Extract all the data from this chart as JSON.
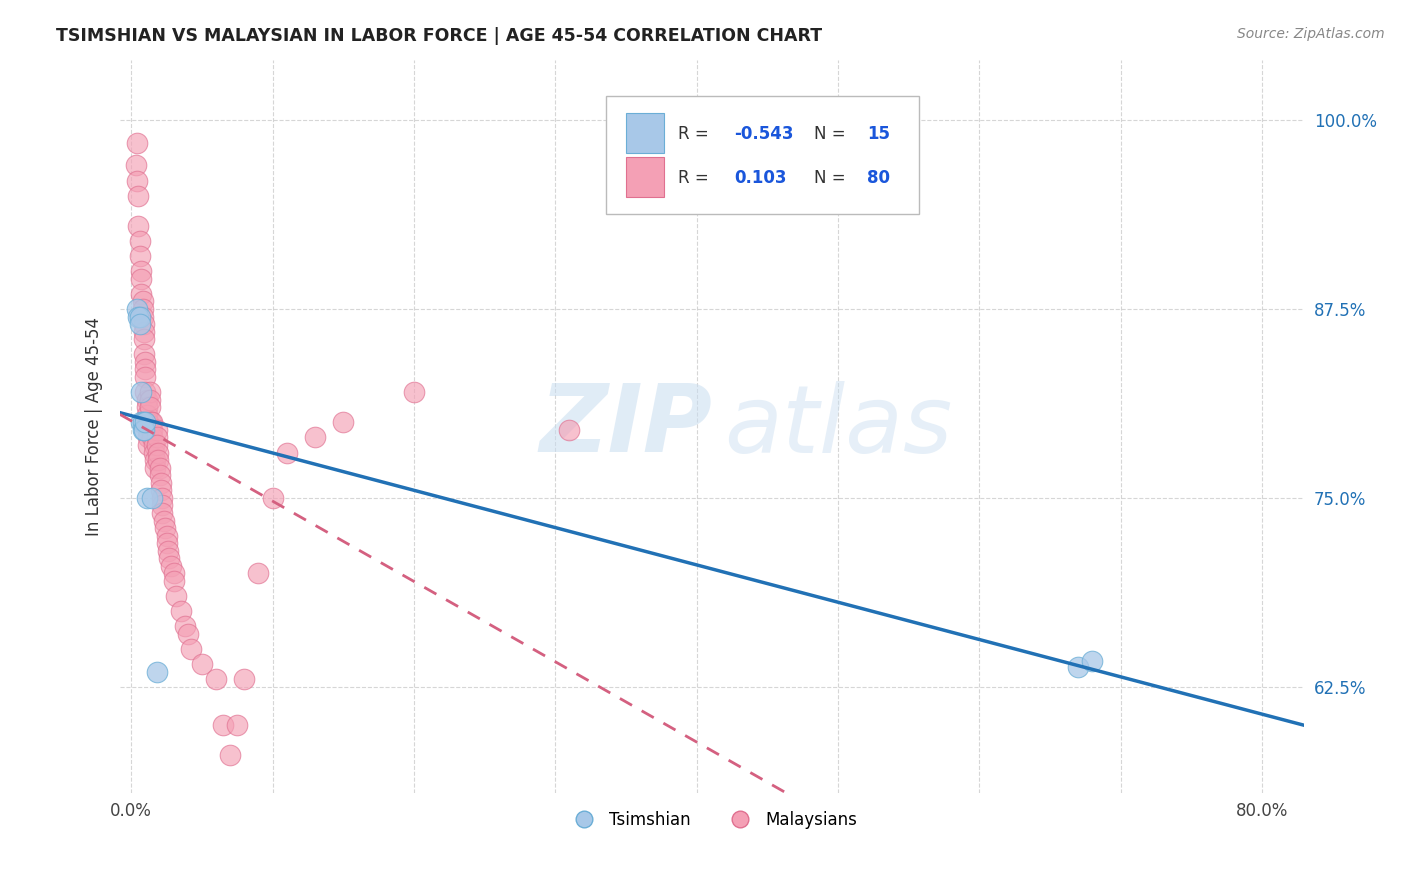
{
  "title": "TSIMSHIAN VS MALAYSIAN IN LABOR FORCE | AGE 45-54 CORRELATION CHART",
  "source": "Source: ZipAtlas.com",
  "ylabel": "In Labor Force | Age 45-54",
  "xlim_min": -0.008,
  "xlim_max": 0.83,
  "ylim_min": 0.555,
  "ylim_max": 1.04,
  "xticks": [
    0.0,
    0.1,
    0.2,
    0.3,
    0.4,
    0.5,
    0.6,
    0.7,
    0.8
  ],
  "xticklabels": [
    "0.0%",
    "",
    "",
    "",
    "",
    "",
    "",
    "",
    "80.0%"
  ],
  "yticks": [
    0.625,
    0.75,
    0.875,
    1.0
  ],
  "yticklabels": [
    "62.5%",
    "75.0%",
    "87.5%",
    "100.0%"
  ],
  "tsimshian_color": "#a8c8e8",
  "tsimshian_edge": "#6baed6",
  "malaysian_color": "#f4a0b5",
  "malaysian_edge": "#e07090",
  "tsimshian_line_color": "#2171b5",
  "malaysian_line_color": "#d46080",
  "tsimshian_R": -0.543,
  "tsimshian_N": 15,
  "malaysian_R": 0.103,
  "malaysian_N": 80,
  "legend_color": "#1a56db",
  "watermark_color": "#c8ddf0",
  "tsimshian_x": [
    0.004,
    0.005,
    0.006,
    0.006,
    0.007,
    0.007,
    0.008,
    0.008,
    0.009,
    0.01,
    0.011,
    0.015,
    0.018,
    0.67,
    0.68
  ],
  "tsimshian_y": [
    0.875,
    0.87,
    0.87,
    0.865,
    0.82,
    0.8,
    0.8,
    0.795,
    0.795,
    0.8,
    0.75,
    0.75,
    0.635,
    0.638,
    0.642
  ],
  "malaysian_x": [
    0.003,
    0.004,
    0.004,
    0.005,
    0.005,
    0.006,
    0.006,
    0.007,
    0.007,
    0.007,
    0.008,
    0.008,
    0.008,
    0.009,
    0.009,
    0.009,
    0.009,
    0.01,
    0.01,
    0.01,
    0.01,
    0.011,
    0.011,
    0.011,
    0.011,
    0.012,
    0.012,
    0.012,
    0.012,
    0.013,
    0.013,
    0.013,
    0.014,
    0.014,
    0.015,
    0.015,
    0.015,
    0.016,
    0.016,
    0.017,
    0.017,
    0.018,
    0.018,
    0.018,
    0.019,
    0.019,
    0.02,
    0.02,
    0.021,
    0.021,
    0.022,
    0.022,
    0.022,
    0.023,
    0.024,
    0.025,
    0.025,
    0.026,
    0.027,
    0.028,
    0.03,
    0.03,
    0.032,
    0.035,
    0.038,
    0.04,
    0.042,
    0.05,
    0.06,
    0.065,
    0.07,
    0.075,
    0.08,
    0.09,
    0.1,
    0.11,
    0.13,
    0.15,
    0.2,
    0.31
  ],
  "malaysian_y": [
    0.97,
    0.985,
    0.96,
    0.95,
    0.93,
    0.92,
    0.91,
    0.9,
    0.895,
    0.885,
    0.88,
    0.875,
    0.87,
    0.865,
    0.86,
    0.855,
    0.845,
    0.84,
    0.835,
    0.83,
    0.82,
    0.815,
    0.81,
    0.805,
    0.8,
    0.8,
    0.795,
    0.79,
    0.785,
    0.82,
    0.815,
    0.81,
    0.8,
    0.795,
    0.8,
    0.795,
    0.79,
    0.785,
    0.78,
    0.775,
    0.77,
    0.795,
    0.79,
    0.785,
    0.78,
    0.775,
    0.77,
    0.765,
    0.76,
    0.755,
    0.75,
    0.745,
    0.74,
    0.735,
    0.73,
    0.725,
    0.72,
    0.715,
    0.71,
    0.705,
    0.7,
    0.695,
    0.685,
    0.675,
    0.665,
    0.66,
    0.65,
    0.64,
    0.63,
    0.6,
    0.58,
    0.6,
    0.63,
    0.7,
    0.75,
    0.78,
    0.79,
    0.8,
    0.82,
    0.795
  ]
}
